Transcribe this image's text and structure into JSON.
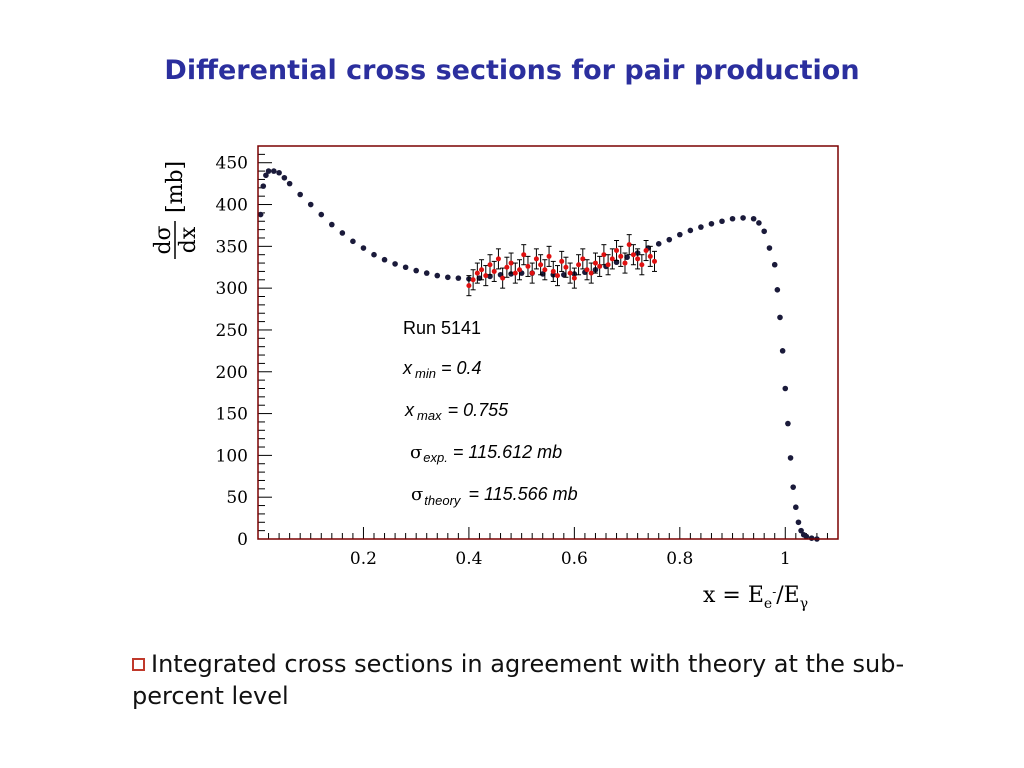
{
  "slide": {
    "title": "Differential cross sections for pair production",
    "bullet_text": "Integrated cross sections in agreement with theory at the sub-percent level"
  },
  "colors": {
    "title": "#2b2f9e",
    "theory": "#1a1a3a",
    "data": "#e01010",
    "frame": "#7a0000"
  },
  "chart_data": {
    "type": "scatter",
    "ylabel_top": "dσ",
    "ylabel_bottom": "dx",
    "ylabel_unit": "[mb]",
    "xlabel_main": "x = E",
    "xlabel_sub1": "e",
    "xlabel_sup": "-",
    "xlabel_mid": "/E",
    "xlabel_sub2": "γ",
    "xlim": [
      0,
      1.1
    ],
    "ylim": [
      0,
      470
    ],
    "xticks": [
      0.2,
      0.4,
      0.6,
      0.8,
      1
    ],
    "xtick_labels": [
      "0.2",
      "0.4",
      "0.6",
      "0.8",
      "1"
    ],
    "yticks": [
      0,
      50,
      100,
      150,
      200,
      250,
      300,
      350,
      400,
      450
    ],
    "ytick_labels": [
      "0",
      "50",
      "100",
      "150",
      "200",
      "250",
      "300",
      "350",
      "400",
      "450"
    ],
    "annotations": {
      "run": "Run 5141",
      "xmin_sym": "x",
      "xmin_sub": "min",
      "xmin_val": "= 0.4",
      "xmax_sym": "x",
      "xmax_sub": "max",
      "xmax_val": "= 0.755",
      "sexp_sym": "σ",
      "sexp_sub": "exp.",
      "sexp_val": "= 115.612 mb",
      "sth_sym": "σ",
      "sth_sub": "theory",
      "sth_val": "= 115.566 mb"
    },
    "series": [
      {
        "x": [
          0.005,
          0.01,
          0.015,
          0.02,
          0.03,
          0.04,
          0.05,
          0.06,
          0.08,
          0.1,
          0.12,
          0.14,
          0.16,
          0.18,
          0.2,
          0.22,
          0.24,
          0.26,
          0.28,
          0.3,
          0.32,
          0.34,
          0.36,
          0.38,
          0.4,
          0.42,
          0.44,
          0.46,
          0.48,
          0.5,
          0.52,
          0.54,
          0.56,
          0.58,
          0.6,
          0.62,
          0.64,
          0.66,
          0.68,
          0.7,
          0.72,
          0.74,
          0.76,
          0.78,
          0.8,
          0.82,
          0.84,
          0.86,
          0.88,
          0.9,
          0.92,
          0.94,
          0.95,
          0.96,
          0.97,
          0.98,
          0.985,
          0.99,
          0.995,
          1.0,
          1.005,
          1.01,
          1.015,
          1.02,
          1.025,
          1.03,
          1.035,
          1.04,
          1.05,
          1.06
        ],
        "values": [
          388,
          422,
          435,
          440,
          440,
          438,
          432,
          425,
          412,
          400,
          388,
          376,
          366,
          356,
          348,
          340,
          334,
          329,
          325,
          321,
          318,
          315,
          313,
          312,
          311,
          312,
          314,
          316,
          317,
          318,
          318,
          317,
          316,
          316,
          317,
          319,
          322,
          326,
          331,
          337,
          342,
          348,
          353,
          358,
          364,
          369,
          373,
          377,
          380,
          383,
          384,
          383,
          378,
          368,
          348,
          328,
          298,
          265,
          225,
          180,
          138,
          97,
          62,
          38,
          20,
          10,
          5,
          3,
          1,
          0
        ]
      },
      {
        "x": [
          0.4,
          0.408,
          0.416,
          0.424,
          0.432,
          0.44,
          0.448,
          0.456,
          0.464,
          0.472,
          0.48,
          0.488,
          0.496,
          0.504,
          0.512,
          0.52,
          0.528,
          0.536,
          0.544,
          0.552,
          0.56,
          0.568,
          0.576,
          0.584,
          0.592,
          0.6,
          0.608,
          0.616,
          0.624,
          0.632,
          0.64,
          0.648,
          0.656,
          0.664,
          0.672,
          0.68,
          0.688,
          0.696,
          0.704,
          0.712,
          0.72,
          0.728,
          0.736,
          0.744,
          0.752
        ],
        "values": [
          303,
          310,
          318,
          322,
          315,
          328,
          320,
          335,
          312,
          325,
          330,
          318,
          322,
          340,
          326,
          318,
          335,
          328,
          322,
          338,
          320,
          315,
          332,
          325,
          318,
          312,
          328,
          335,
          322,
          318,
          330,
          326,
          340,
          328,
          335,
          345,
          338,
          330,
          352,
          340,
          335,
          328,
          345,
          338,
          332
        ],
        "errors": [
          12,
          12,
          12,
          12,
          12,
          12,
          12,
          12,
          12,
          12,
          12,
          12,
          12,
          12,
          12,
          12,
          12,
          12,
          12,
          12,
          12,
          12,
          12,
          12,
          12,
          12,
          12,
          12,
          12,
          12,
          12,
          12,
          12,
          12,
          12,
          12,
          12,
          12,
          12,
          12,
          12,
          12,
          12,
          12,
          12
        ]
      }
    ]
  }
}
